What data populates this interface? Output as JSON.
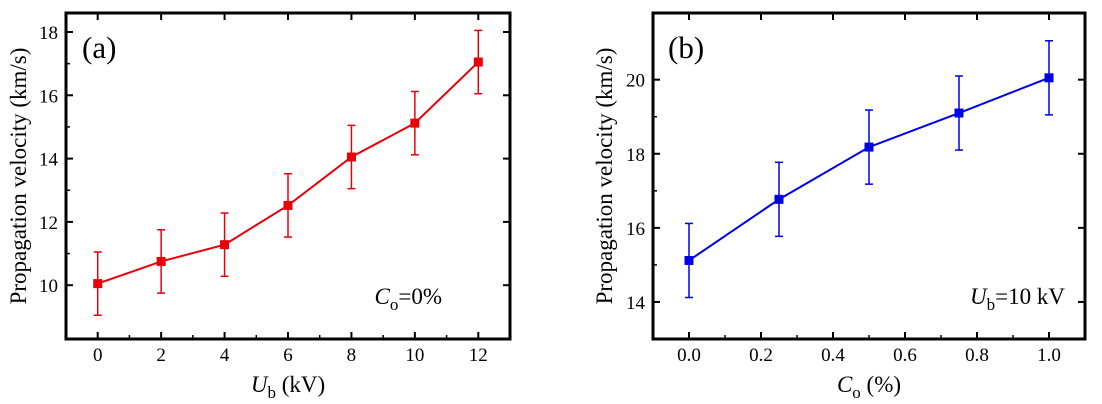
{
  "chart_data": [
    {
      "type": "line",
      "panel_label": "(a)",
      "x": [
        0,
        2,
        4,
        6,
        8,
        10,
        12
      ],
      "series": [
        {
          "name": "Propagation velocity",
          "values": [
            10.05,
            10.75,
            11.28,
            12.52,
            14.05,
            15.12,
            17.05
          ],
          "error": [
            1.0,
            1.0,
            1.0,
            1.0,
            1.0,
            1.0,
            1.0
          ],
          "color": "#e8000b",
          "marker": "square"
        }
      ],
      "xlim": [
        -1,
        13
      ],
      "ylim": [
        8.3,
        18.6
      ],
      "xticks": [
        0,
        2,
        4,
        6,
        8,
        10,
        12
      ],
      "xtick_labels": [
        "0",
        "2",
        "4",
        "6",
        "8",
        "10",
        "12"
      ],
      "yticks": [
        10,
        12,
        14,
        16,
        18
      ],
      "ytick_labels": [
        "10",
        "12",
        "14",
        "16",
        "18"
      ],
      "xlabel": {
        "main": "U",
        "sub": "b",
        "rest": " (kV)"
      },
      "ylabel": "Propagation velocity (km/s)",
      "annotation": {
        "main": "C",
        "sub": "o",
        "rest": "=0%"
      }
    },
    {
      "type": "line",
      "panel_label": "(b)",
      "x": [
        0.0,
        0.25,
        0.5,
        0.75,
        1.0
      ],
      "series": [
        {
          "name": "Propagation velocity",
          "values": [
            15.12,
            16.77,
            18.18,
            19.1,
            20.05
          ],
          "error": [
            1.0,
            1.0,
            1.0,
            1.0,
            1.0
          ],
          "color": "#0000e6",
          "marker": "square"
        }
      ],
      "xlim": [
        -0.1,
        1.1
      ],
      "ylim": [
        13.0,
        21.8
      ],
      "xticks": [
        0.0,
        0.2,
        0.4,
        0.6,
        0.8,
        1.0
      ],
      "xtick_labels": [
        "0.0",
        "0.2",
        "0.4",
        "0.6",
        "0.8",
        "1.0"
      ],
      "yticks": [
        14,
        16,
        18,
        20
      ],
      "ytick_labels": [
        "14",
        "16",
        "18",
        "20"
      ],
      "xlabel": {
        "main": "C",
        "sub": "o",
        "rest": " (%)"
      },
      "ylabel": "Propagation velocity (km/s)",
      "annotation": {
        "main": "U",
        "sub": "b",
        "rest": "=10 kV"
      }
    }
  ]
}
